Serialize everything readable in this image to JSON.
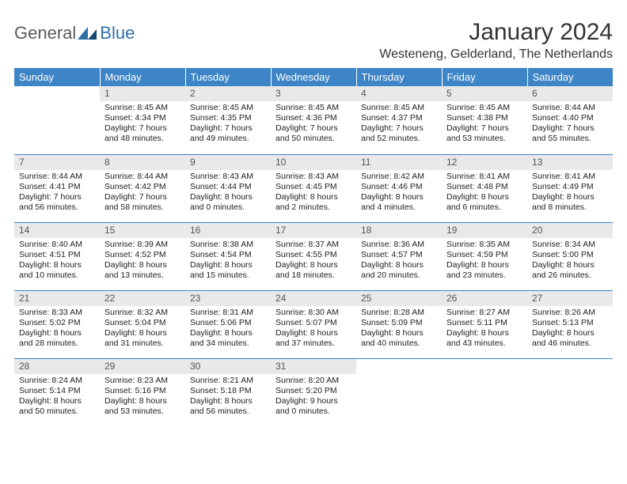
{
  "brand": {
    "part1": "General",
    "part2": "Blue"
  },
  "title": "January 2024",
  "location": "Westeneng, Gelderland, The Netherlands",
  "colors": {
    "header_bg": "#3d85c6",
    "header_text": "#ffffff",
    "daynum_bg": "#e9e9e9",
    "daynum_text": "#555555",
    "row_divider": "#3d85c6",
    "body_text": "#222222",
    "logo_blue": "#2f6fa7",
    "logo_gray": "#5a5a5a"
  },
  "layout": {
    "columns": 7,
    "rows": 5,
    "first_weekday_index": 1
  },
  "weekdays": [
    "Sunday",
    "Monday",
    "Tuesday",
    "Wednesday",
    "Thursday",
    "Friday",
    "Saturday"
  ],
  "days": [
    {
      "n": 1,
      "sr": "8:45 AM",
      "ss": "4:34 PM",
      "dl": "7 hours and 48 minutes."
    },
    {
      "n": 2,
      "sr": "8:45 AM",
      "ss": "4:35 PM",
      "dl": "7 hours and 49 minutes."
    },
    {
      "n": 3,
      "sr": "8:45 AM",
      "ss": "4:36 PM",
      "dl": "7 hours and 50 minutes."
    },
    {
      "n": 4,
      "sr": "8:45 AM",
      "ss": "4:37 PM",
      "dl": "7 hours and 52 minutes."
    },
    {
      "n": 5,
      "sr": "8:45 AM",
      "ss": "4:38 PM",
      "dl": "7 hours and 53 minutes."
    },
    {
      "n": 6,
      "sr": "8:44 AM",
      "ss": "4:40 PM",
      "dl": "7 hours and 55 minutes."
    },
    {
      "n": 7,
      "sr": "8:44 AM",
      "ss": "4:41 PM",
      "dl": "7 hours and 56 minutes."
    },
    {
      "n": 8,
      "sr": "8:44 AM",
      "ss": "4:42 PM",
      "dl": "7 hours and 58 minutes."
    },
    {
      "n": 9,
      "sr": "8:43 AM",
      "ss": "4:44 PM",
      "dl": "8 hours and 0 minutes."
    },
    {
      "n": 10,
      "sr": "8:43 AM",
      "ss": "4:45 PM",
      "dl": "8 hours and 2 minutes."
    },
    {
      "n": 11,
      "sr": "8:42 AM",
      "ss": "4:46 PM",
      "dl": "8 hours and 4 minutes."
    },
    {
      "n": 12,
      "sr": "8:41 AM",
      "ss": "4:48 PM",
      "dl": "8 hours and 6 minutes."
    },
    {
      "n": 13,
      "sr": "8:41 AM",
      "ss": "4:49 PM",
      "dl": "8 hours and 8 minutes."
    },
    {
      "n": 14,
      "sr": "8:40 AM",
      "ss": "4:51 PM",
      "dl": "8 hours and 10 minutes."
    },
    {
      "n": 15,
      "sr": "8:39 AM",
      "ss": "4:52 PM",
      "dl": "8 hours and 13 minutes."
    },
    {
      "n": 16,
      "sr": "8:38 AM",
      "ss": "4:54 PM",
      "dl": "8 hours and 15 minutes."
    },
    {
      "n": 17,
      "sr": "8:37 AM",
      "ss": "4:55 PM",
      "dl": "8 hours and 18 minutes."
    },
    {
      "n": 18,
      "sr": "8:36 AM",
      "ss": "4:57 PM",
      "dl": "8 hours and 20 minutes."
    },
    {
      "n": 19,
      "sr": "8:35 AM",
      "ss": "4:59 PM",
      "dl": "8 hours and 23 minutes."
    },
    {
      "n": 20,
      "sr": "8:34 AM",
      "ss": "5:00 PM",
      "dl": "8 hours and 26 minutes."
    },
    {
      "n": 21,
      "sr": "8:33 AM",
      "ss": "5:02 PM",
      "dl": "8 hours and 28 minutes."
    },
    {
      "n": 22,
      "sr": "8:32 AM",
      "ss": "5:04 PM",
      "dl": "8 hours and 31 minutes."
    },
    {
      "n": 23,
      "sr": "8:31 AM",
      "ss": "5:06 PM",
      "dl": "8 hours and 34 minutes."
    },
    {
      "n": 24,
      "sr": "8:30 AM",
      "ss": "5:07 PM",
      "dl": "8 hours and 37 minutes."
    },
    {
      "n": 25,
      "sr": "8:28 AM",
      "ss": "5:09 PM",
      "dl": "8 hours and 40 minutes."
    },
    {
      "n": 26,
      "sr": "8:27 AM",
      "ss": "5:11 PM",
      "dl": "8 hours and 43 minutes."
    },
    {
      "n": 27,
      "sr": "8:26 AM",
      "ss": "5:13 PM",
      "dl": "8 hours and 46 minutes."
    },
    {
      "n": 28,
      "sr": "8:24 AM",
      "ss": "5:14 PM",
      "dl": "8 hours and 50 minutes."
    },
    {
      "n": 29,
      "sr": "8:23 AM",
      "ss": "5:16 PM",
      "dl": "8 hours and 53 minutes."
    },
    {
      "n": 30,
      "sr": "8:21 AM",
      "ss": "5:18 PM",
      "dl": "8 hours and 56 minutes."
    },
    {
      "n": 31,
      "sr": "8:20 AM",
      "ss": "5:20 PM",
      "dl": "9 hours and 0 minutes."
    }
  ],
  "labels": {
    "sunrise": "Sunrise:",
    "sunset": "Sunset:",
    "daylight": "Daylight:"
  }
}
